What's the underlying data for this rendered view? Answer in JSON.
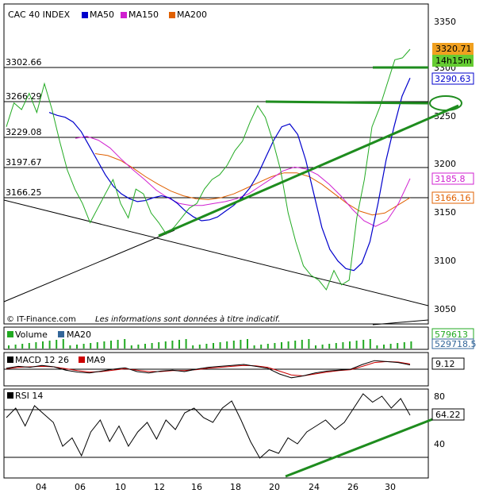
{
  "chart_data": [
    {
      "type": "line",
      "title": "CAC 40 INDEX",
      "legend": [
        {
          "name": "MA50",
          "color": "#0000cc"
        },
        {
          "name": "MA150",
          "color": "#d020d0"
        },
        {
          "name": "MA200",
          "color": "#e06000"
        }
      ],
      "ylim": [
        3040,
        3360
      ],
      "y_ticks": [
        "3350",
        "3300",
        "3250",
        "3200",
        "3150",
        "3100",
        "3050"
      ],
      "x_ticks": [
        "04",
        "06",
        "10",
        "12",
        "16",
        "18",
        "20",
        "24",
        "26",
        "30"
      ],
      "level_labels": [
        {
          "text": "3302.66",
          "value": 3302.66
        },
        {
          "text": "3266.29",
          "value": 3266.29
        },
        {
          "text": "3229.08",
          "value": 3229.08
        },
        {
          "text": "3197.67",
          "value": 3197.67
        },
        {
          "text": "3166.25",
          "value": 3166.25
        }
      ],
      "last_price": "3320.71",
      "time_left": "14h15m",
      "ma50_last": "3290.63",
      "ma150_last": "3185.8",
      "ma200_last": "3166.16",
      "series": [
        {
          "name": "CAC 40 INDEX",
          "color": "#22aa22",
          "values": [
            3240,
            3265,
            3258,
            3275,
            3255,
            3285,
            3258,
            3225,
            3195,
            3175,
            3160,
            3140,
            3155,
            3170,
            3185,
            3160,
            3145,
            3175,
            3170,
            3150,
            3140,
            3128,
            3135,
            3145,
            3155,
            3160,
            3175,
            3185,
            3190,
            3200,
            3215,
            3225,
            3245,
            3262,
            3250,
            3225,
            3195,
            3150,
            3120,
            3095,
            3085,
            3080,
            3070,
            3090,
            3075,
            3080,
            3145,
            3185,
            3240,
            3260,
            3285,
            3310,
            3312,
            3321
          ]
        },
        {
          "name": "MA50",
          "color": "#0000cc",
          "values": [
            3255,
            3252,
            3250,
            3245,
            3235,
            3220,
            3205,
            3190,
            3178,
            3170,
            3165,
            3162,
            3163,
            3166,
            3168,
            3166,
            3160,
            3152,
            3146,
            3142,
            3143,
            3146,
            3152,
            3158,
            3166,
            3176,
            3190,
            3208,
            3226,
            3240,
            3243,
            3232,
            3205,
            3170,
            3135,
            3112,
            3100,
            3092,
            3090,
            3098,
            3120,
            3160,
            3205,
            3240,
            3272,
            3291
          ]
        },
        {
          "name": "MA150",
          "color": "#d020d0",
          "values": [
            3228,
            3230,
            3226,
            3218,
            3206,
            3195,
            3185,
            3174,
            3166,
            3160,
            3158,
            3158,
            3160,
            3162,
            3165,
            3170,
            3178,
            3186,
            3194,
            3198,
            3196,
            3190,
            3180,
            3168,
            3154,
            3142,
            3136,
            3142,
            3160,
            3186
          ]
        },
        {
          "name": "MA200",
          "color": "#e06000",
          "values": [
            3212,
            3210,
            3205,
            3197,
            3188,
            3180,
            3173,
            3168,
            3165,
            3164,
            3166,
            3170,
            3176,
            3182,
            3188,
            3192,
            3192,
            3188,
            3180,
            3170,
            3160,
            3152,
            3148,
            3150,
            3158,
            3166
          ]
        }
      ]
    },
    {
      "type": "bar",
      "title": "Volume",
      "legend": [
        {
          "name": "Volume",
          "color": "#22aa22"
        },
        {
          "name": "MA20",
          "color": "#336699"
        }
      ],
      "last_value": "579613",
      "ma20_last": "529718.5"
    },
    {
      "type": "line",
      "title": "MACD 12 26",
      "legend": [
        {
          "name": "MACD 12 26",
          "color": "#000000"
        },
        {
          "name": "MA9",
          "color": "#cc0000"
        }
      ],
      "last_value": "9.12",
      "series": [
        {
          "name": "MACD 12 26",
          "values": [
            2,
            6,
            4,
            8,
            5,
            -2,
            -6,
            -8,
            -4,
            0,
            3,
            -5,
            -8,
            -4,
            -2,
            -5,
            0,
            4,
            6,
            8,
            10,
            6,
            2,
            -10,
            -18,
            -14,
            -8,
            -4,
            -2,
            0,
            10,
            18,
            16,
            14,
            9
          ]
        },
        {
          "name": "MA9",
          "values": [
            1,
            4,
            5,
            6,
            5,
            1,
            -3,
            -6,
            -5,
            -2,
            1,
            -2,
            -5,
            -5,
            -3,
            -3,
            -1,
            2,
            4,
            6,
            8,
            7,
            4,
            -4,
            -12,
            -14,
            -10,
            -6,
            -3,
            -1,
            6,
            14,
            16,
            15,
            11
          ]
        }
      ]
    },
    {
      "type": "line",
      "title": "RSI 14",
      "y_ticks": [
        "80",
        "40"
      ],
      "last_value": "64.22",
      "series": [
        {
          "name": "RSI 14",
          "values": [
            62,
            70,
            55,
            72,
            65,
            58,
            38,
            45,
            30,
            50,
            60,
            42,
            55,
            38,
            50,
            58,
            44,
            60,
            52,
            66,
            70,
            62,
            58,
            70,
            76,
            60,
            42,
            28,
            35,
            32,
            45,
            40,
            50,
            55,
            60,
            52,
            58,
            70,
            82,
            75,
            80,
            70,
            78,
            64
          ]
        }
      ]
    }
  ],
  "annotations": {
    "source": "© IT-Finance.com",
    "disclaimer": "Les informations sont données à titre indicatif."
  },
  "colors": {
    "price": "#22aa22",
    "trendline_green": "#1e8c1e",
    "ma50": "#0000cc",
    "ma150": "#d020d0",
    "ma200": "#e06000",
    "last_price_box": "#f0a020",
    "time_box": "#66cc33"
  }
}
